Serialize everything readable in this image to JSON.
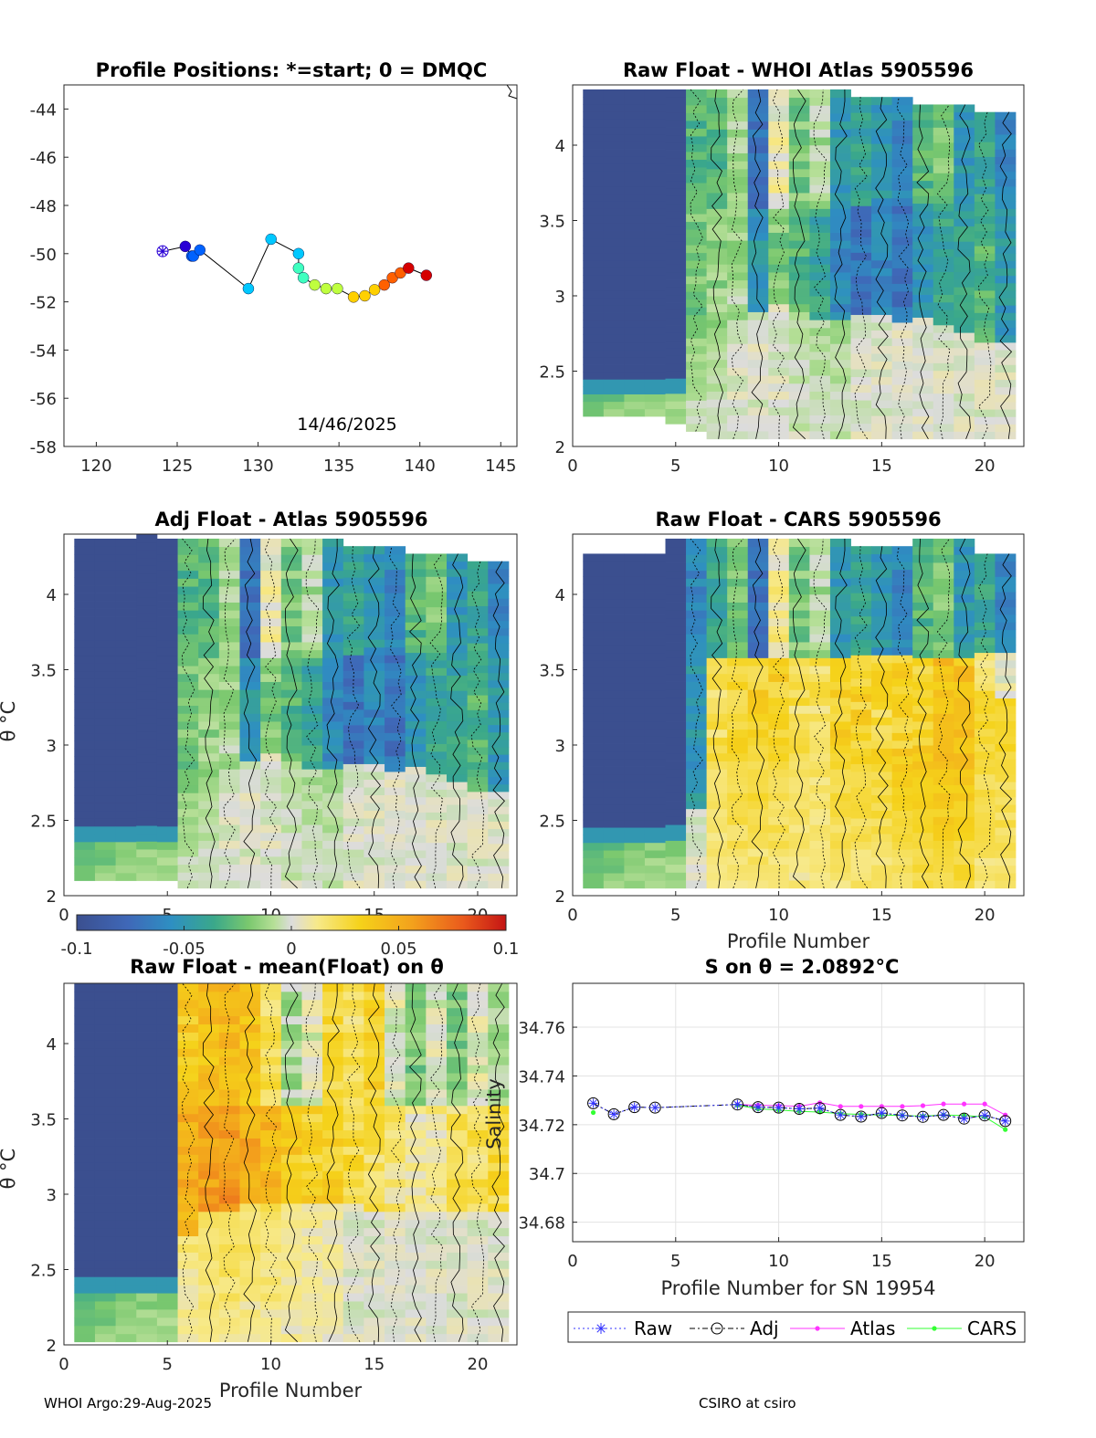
{
  "colors": {
    "diverging": [
      "#3b4f8f",
      "#3f68b8",
      "#2e8fc2",
      "#3aa88a",
      "#7ac86e",
      "#b6df97",
      "#dcdcdc",
      "#f7e98a",
      "#f5d21a",
      "#f3a21c",
      "#ea5a1c",
      "#c41414"
    ],
    "raw": "#3333ff",
    "adj": "#000000",
    "atlas": "#ff33ff",
    "cars": "#33ff33",
    "track": [
      "#2a00d5",
      "#0062ff",
      "#00c8ff",
      "#3fffbf",
      "#bfff3f",
      "#ffd000",
      "#ff6000",
      "#d50000"
    ]
  },
  "chart_data": [
    {
      "id": "positions",
      "type": "scatter",
      "title": "Profile Positions: *=start; 0 = DMQC",
      "xlim": [
        118,
        146
      ],
      "ylim": [
        -58,
        -43
      ],
      "xticks": [
        "120",
        "125",
        "130",
        "135",
        "140",
        "145"
      ],
      "yticks": [
        "-44",
        "-46",
        "-48",
        "-50",
        "-52",
        "-54",
        "-56",
        "-58"
      ],
      "annotation": "14/46/2025",
      "lon": [
        124.1,
        125.5,
        125.9,
        126.0,
        126.4,
        129.4,
        130.8,
        132.5,
        132.5,
        132.8,
        133.5,
        134.2,
        134.9,
        135.9,
        136.6,
        137.2,
        137.8,
        138.3,
        138.8,
        139.3,
        140.4
      ],
      "lat": [
        -49.9,
        -49.7,
        -50.1,
        -50.1,
        -49.85,
        -51.45,
        -49.4,
        -50.0,
        -50.6,
        -51.0,
        -51.3,
        -51.45,
        -51.45,
        -51.8,
        -51.75,
        -51.5,
        -51.3,
        -51.0,
        -50.8,
        -50.6,
        -50.9
      ]
    },
    {
      "id": "whoi",
      "type": "heatmap",
      "title": "Raw Float - WHOI Atlas  5905596",
      "xlim": [
        0,
        21.9
      ],
      "ylim": [
        2,
        4.4
      ],
      "xticks": [
        "0",
        "5",
        "10",
        "15",
        "20"
      ],
      "yticks": [
        "2",
        "2.5",
        "3",
        "3.5",
        "4"
      ],
      "profiles": [
        1,
        2,
        3,
        4,
        5,
        6,
        7,
        8,
        9,
        10,
        11,
        12,
        13,
        14,
        15,
        16,
        17,
        18,
        19,
        20,
        21
      ],
      "top": [
        4.37,
        4.37,
        4.37,
        4.37,
        4.37,
        4.37,
        4.37,
        4.37,
        4.37,
        4.37,
        4.37,
        4.37,
        4.37,
        4.32,
        4.32,
        4.32,
        4.27,
        4.27,
        4.27,
        4.22,
        4.22
      ],
      "bottom": [
        2.2,
        2.2,
        2.2,
        2.2,
        2.15,
        2.1,
        2.05,
        2.05,
        2.05,
        2.05,
        2.05,
        2.05,
        2.05,
        2.05,
        2.05,
        2.05,
        2.05,
        2.05,
        2.05,
        2.05,
        2.05
      ],
      "cold_cut": [
        2.45,
        2.45,
        2.45,
        2.45,
        2.45,
        2.6,
        2.8,
        2.85,
        2.9,
        2.95,
        2.9,
        2.85,
        2.85,
        2.9,
        2.85,
        2.8,
        2.85,
        2.8,
        2.75,
        2.7,
        2.7
      ],
      "upper": [
        -0.1,
        -0.1,
        -0.1,
        -0.1,
        -0.1,
        -0.03,
        -0.03,
        -0.01,
        -0.07,
        0.005,
        -0.02,
        -0.01,
        -0.05,
        -0.04,
        -0.05,
        -0.06,
        -0.03,
        -0.02,
        -0.05,
        -0.04,
        -0.06
      ],
      "mid": [
        -0.1,
        -0.1,
        -0.1,
        -0.1,
        -0.1,
        -0.02,
        -0.015,
        -0.01,
        -0.05,
        -0.02,
        -0.03,
        -0.04,
        -0.06,
        -0.07,
        -0.06,
        -0.07,
        -0.05,
        -0.04,
        -0.04,
        -0.03,
        -0.05
      ],
      "low": [
        -0.03,
        -0.03,
        -0.02,
        -0.02,
        -0.02,
        -0.01,
        -0.01,
        0,
        0,
        0,
        -0.005,
        -0.01,
        -0.01,
        0,
        0,
        0,
        0,
        0,
        0,
        0,
        0
      ]
    },
    {
      "id": "adj",
      "type": "heatmap",
      "title": "Adj Float - Atlas  5905596",
      "xlim": [
        0,
        21.9
      ],
      "ylim": [
        2,
        4.4
      ],
      "xticks": [
        "0",
        "5",
        "10",
        "15",
        "20"
      ],
      "yticks": [
        "2",
        "2.5",
        "3",
        "3.5",
        "4"
      ],
      "ylabel": "θ °C",
      "profiles": [
        1,
        2,
        3,
        4,
        5,
        6,
        7,
        8,
        9,
        10,
        11,
        12,
        13,
        14,
        15,
        16,
        17,
        18,
        19,
        20,
        21
      ],
      "top": [
        4.37,
        4.37,
        4.37,
        4.4,
        4.37,
        4.37,
        4.37,
        4.37,
        4.37,
        4.37,
        4.37,
        4.37,
        4.37,
        4.32,
        4.32,
        4.32,
        4.27,
        4.27,
        4.27,
        4.22,
        4.22
      ],
      "bottom": [
        2.1,
        2.1,
        2.1,
        2.1,
        2.1,
        2.05,
        2.05,
        2.05,
        2.05,
        2.05,
        2.05,
        2.05,
        2.05,
        2.05,
        2.05,
        2.05,
        2.05,
        2.05,
        2.05,
        2.05,
        2.05
      ],
      "cold_cut": [
        2.45,
        2.45,
        2.45,
        2.45,
        2.45,
        2.6,
        2.8,
        2.85,
        2.9,
        2.95,
        2.9,
        2.85,
        2.85,
        2.9,
        2.85,
        2.8,
        2.85,
        2.8,
        2.75,
        2.7,
        2.7
      ],
      "upper": [
        -0.1,
        -0.1,
        -0.1,
        -0.1,
        -0.1,
        -0.03,
        -0.03,
        -0.01,
        -0.07,
        0.005,
        -0.02,
        -0.01,
        -0.05,
        -0.04,
        -0.05,
        -0.06,
        -0.03,
        -0.02,
        -0.05,
        -0.04,
        -0.06
      ],
      "mid": [
        -0.1,
        -0.1,
        -0.1,
        -0.1,
        -0.1,
        -0.02,
        -0.015,
        -0.01,
        -0.05,
        -0.02,
        -0.03,
        -0.04,
        -0.06,
        -0.07,
        -0.06,
        -0.07,
        -0.05,
        -0.04,
        -0.04,
        -0.03,
        -0.05
      ],
      "low": [
        -0.03,
        -0.03,
        -0.02,
        -0.02,
        -0.02,
        -0.01,
        -0.01,
        0,
        0,
        0,
        -0.005,
        -0.01,
        -0.01,
        0,
        0,
        0,
        0,
        0,
        0,
        0,
        0
      ]
    },
    {
      "id": "cars",
      "type": "heatmap",
      "title": "Raw Float - CARS  5905596",
      "xlim": [
        0,
        21.9
      ],
      "ylim": [
        2,
        4.4
      ],
      "xticks": [
        "0",
        "5",
        "10",
        "15",
        "20"
      ],
      "yticks": [
        "2",
        "2.5",
        "3",
        "3.5",
        "4"
      ],
      "xlabel": "Profile Number",
      "profiles": [
        1,
        2,
        3,
        4,
        5,
        6,
        7,
        8,
        9,
        10,
        11,
        12,
        13,
        14,
        15,
        16,
        17,
        18,
        19,
        20,
        21
      ],
      "top": [
        4.27,
        4.27,
        4.27,
        4.27,
        4.37,
        4.37,
        4.37,
        4.37,
        4.37,
        4.37,
        4.37,
        4.37,
        4.37,
        4.32,
        4.32,
        4.32,
        4.37,
        4.37,
        4.37,
        4.27,
        4.27
      ],
      "bottom": [
        2.05,
        2.05,
        2.05,
        2.05,
        2.05,
        2.05,
        2.05,
        2.05,
        2.05,
        2.05,
        2.05,
        2.05,
        2.05,
        2.05,
        2.05,
        2.05,
        2.05,
        2.05,
        2.05,
        2.05,
        2.05
      ],
      "cold_cut": [
        2.45,
        2.45,
        2.45,
        2.45,
        2.45,
        2.6,
        2.8,
        3.0,
        3.1,
        3.2,
        3.2,
        3.1,
        3.0,
        3.0,
        3.0,
        3.0,
        3.0,
        3.1,
        3.2,
        3.3,
        3.3
      ],
      "upper": [
        -0.1,
        -0.1,
        -0.1,
        -0.1,
        -0.1,
        -0.06,
        -0.04,
        -0.02,
        -0.07,
        0.01,
        -0.02,
        -0.01,
        -0.05,
        -0.04,
        -0.05,
        -0.06,
        -0.03,
        -0.02,
        -0.05,
        -0.04,
        -0.06
      ],
      "mid": [
        -0.1,
        -0.1,
        -0.1,
        -0.1,
        -0.1,
        -0.05,
        0.02,
        0.03,
        0.03,
        0.03,
        0.02,
        0.02,
        0.03,
        0.03,
        0.025,
        0.03,
        0.03,
        0.04,
        0.04,
        0.02,
        0.0
      ],
      "low": [
        -0.03,
        -0.03,
        -0.02,
        -0.02,
        -0.02,
        0.0,
        0.02,
        0.03,
        0.03,
        0.03,
        0.025,
        0.02,
        0.03,
        0.03,
        0.03,
        0.035,
        0.04,
        0.045,
        0.045,
        0.03,
        0.03
      ]
    },
    {
      "id": "colorbar",
      "type": "colorbar",
      "ticks": [
        "-0.1",
        "-0.05",
        "0",
        "0.05",
        "0.1"
      ],
      "range": [
        -0.1,
        0.1
      ]
    },
    {
      "id": "mean",
      "type": "heatmap",
      "title": "Raw Float - mean(Float) on θ",
      "xlim": [
        0,
        21.9
      ],
      "ylim": [
        2,
        4.4
      ],
      "xticks": [
        "0",
        "5",
        "10",
        "15",
        "20"
      ],
      "yticks": [
        "2",
        "2.5",
        "3",
        "3.5",
        "4"
      ],
      "ylabel": "θ °C",
      "xlabel": "Profile Number",
      "profiles": [
        1,
        2,
        3,
        4,
        5,
        6,
        7,
        8,
        9,
        10,
        11,
        12,
        13,
        14,
        15,
        16,
        17,
        18,
        19,
        20,
        21
      ],
      "top": [
        4.4,
        4.4,
        4.4,
        4.4,
        4.4,
        4.4,
        4.4,
        4.4,
        4.4,
        4.4,
        4.4,
        4.4,
        4.4,
        4.4,
        4.4,
        4.4,
        4.4,
        4.4,
        4.4,
        4.4,
        4.4
      ],
      "bottom": [
        2.02,
        2.02,
        2.02,
        2.02,
        2.02,
        2.02,
        2.02,
        2.02,
        2.02,
        2.02,
        2.02,
        2.02,
        2.02,
        2.02,
        2.02,
        2.02,
        2.02,
        2.02,
        2.02,
        2.02,
        2.02
      ],
      "cold_cut": [
        2.45,
        2.45,
        2.45,
        2.45,
        2.45,
        2.7,
        2.9,
        2.9,
        2.95,
        2.95,
        2.95,
        2.95,
        2.95,
        2.95,
        2.9,
        2.9,
        2.9,
        2.9,
        2.9,
        2.9,
        2.9
      ],
      "upper": [
        -0.1,
        -0.1,
        -0.1,
        -0.1,
        -0.1,
        0.035,
        0.04,
        0.045,
        0.04,
        0.02,
        -0.01,
        0.0,
        0.025,
        0.02,
        0.03,
        0.0,
        -0.02,
        0.0,
        -0.02,
        0.0,
        -0.01
      ],
      "mid": [
        -0.1,
        -0.1,
        -0.1,
        -0.1,
        -0.1,
        0.05,
        0.055,
        0.06,
        0.05,
        0.045,
        0.035,
        0.03,
        0.03,
        0.025,
        0.02,
        0.015,
        0.01,
        0.01,
        0.02,
        0.02,
        0.025
      ],
      "low": [
        -0.03,
        -0.03,
        -0.02,
        -0.02,
        -0.02,
        0.015,
        0.02,
        0.025,
        0.02,
        0.02,
        0.015,
        0.01,
        0.01,
        0.0,
        0.0,
        0.0,
        0.0,
        0.0,
        0.0,
        0.0,
        0.0
      ]
    },
    {
      "id": "salinity",
      "type": "line",
      "title": "S on θ = 2.0892°C",
      "xlabel": "Profile Number for SN 19954",
      "ylabel": "Salinity",
      "xlim": [
        0,
        21.9
      ],
      "ylim": [
        34.672,
        34.778
      ],
      "xticks": [
        "0",
        "5",
        "10",
        "15",
        "20"
      ],
      "yticks": [
        "34.76",
        "34.74",
        "34.72",
        "34.7",
        "34.68"
      ],
      "x": [
        1,
        2,
        3,
        4,
        8,
        9,
        10,
        11,
        12,
        13,
        14,
        15,
        16,
        17,
        18,
        19,
        20,
        21
      ],
      "series": [
        {
          "name": "Raw",
          "values": [
            34.7288,
            34.7243,
            34.7272,
            34.727,
            34.7283,
            34.7272,
            34.727,
            34.7265,
            34.7268,
            34.724,
            34.7233,
            34.7248,
            34.7238,
            34.7232,
            34.724,
            34.7225,
            34.7238,
            34.7215
          ]
        },
        {
          "name": "Adj",
          "values": [
            34.7288,
            34.7243,
            34.7272,
            34.727,
            34.7283,
            34.7272,
            34.727,
            34.7265,
            34.7268,
            34.724,
            34.7233,
            34.7248,
            34.7238,
            34.7232,
            34.724,
            34.7225,
            34.7238,
            34.7215
          ]
        },
        {
          "name": "Atlas",
          "values": [
            null,
            null,
            null,
            null,
            34.7283,
            34.728,
            34.7278,
            34.7276,
            34.729,
            34.7275,
            34.7275,
            34.7275,
            34.7275,
            34.7278,
            34.7285,
            34.7285,
            34.7285,
            34.724
          ]
        },
        {
          "name": "CARS",
          "values": [
            34.725,
            null,
            null,
            null,
            34.728,
            34.7265,
            34.726,
            34.7255,
            34.7252,
            34.7245,
            34.7242,
            34.724,
            34.7238,
            34.7235,
            34.724,
            34.7238,
            34.7232,
            34.718
          ]
        }
      ],
      "legend": [
        "Raw",
        "Adj",
        "Atlas",
        "CARS"
      ]
    }
  ],
  "footer": {
    "left": "WHOI Argo:29-Aug-2025",
    "right": "CSIRO at csiro"
  }
}
